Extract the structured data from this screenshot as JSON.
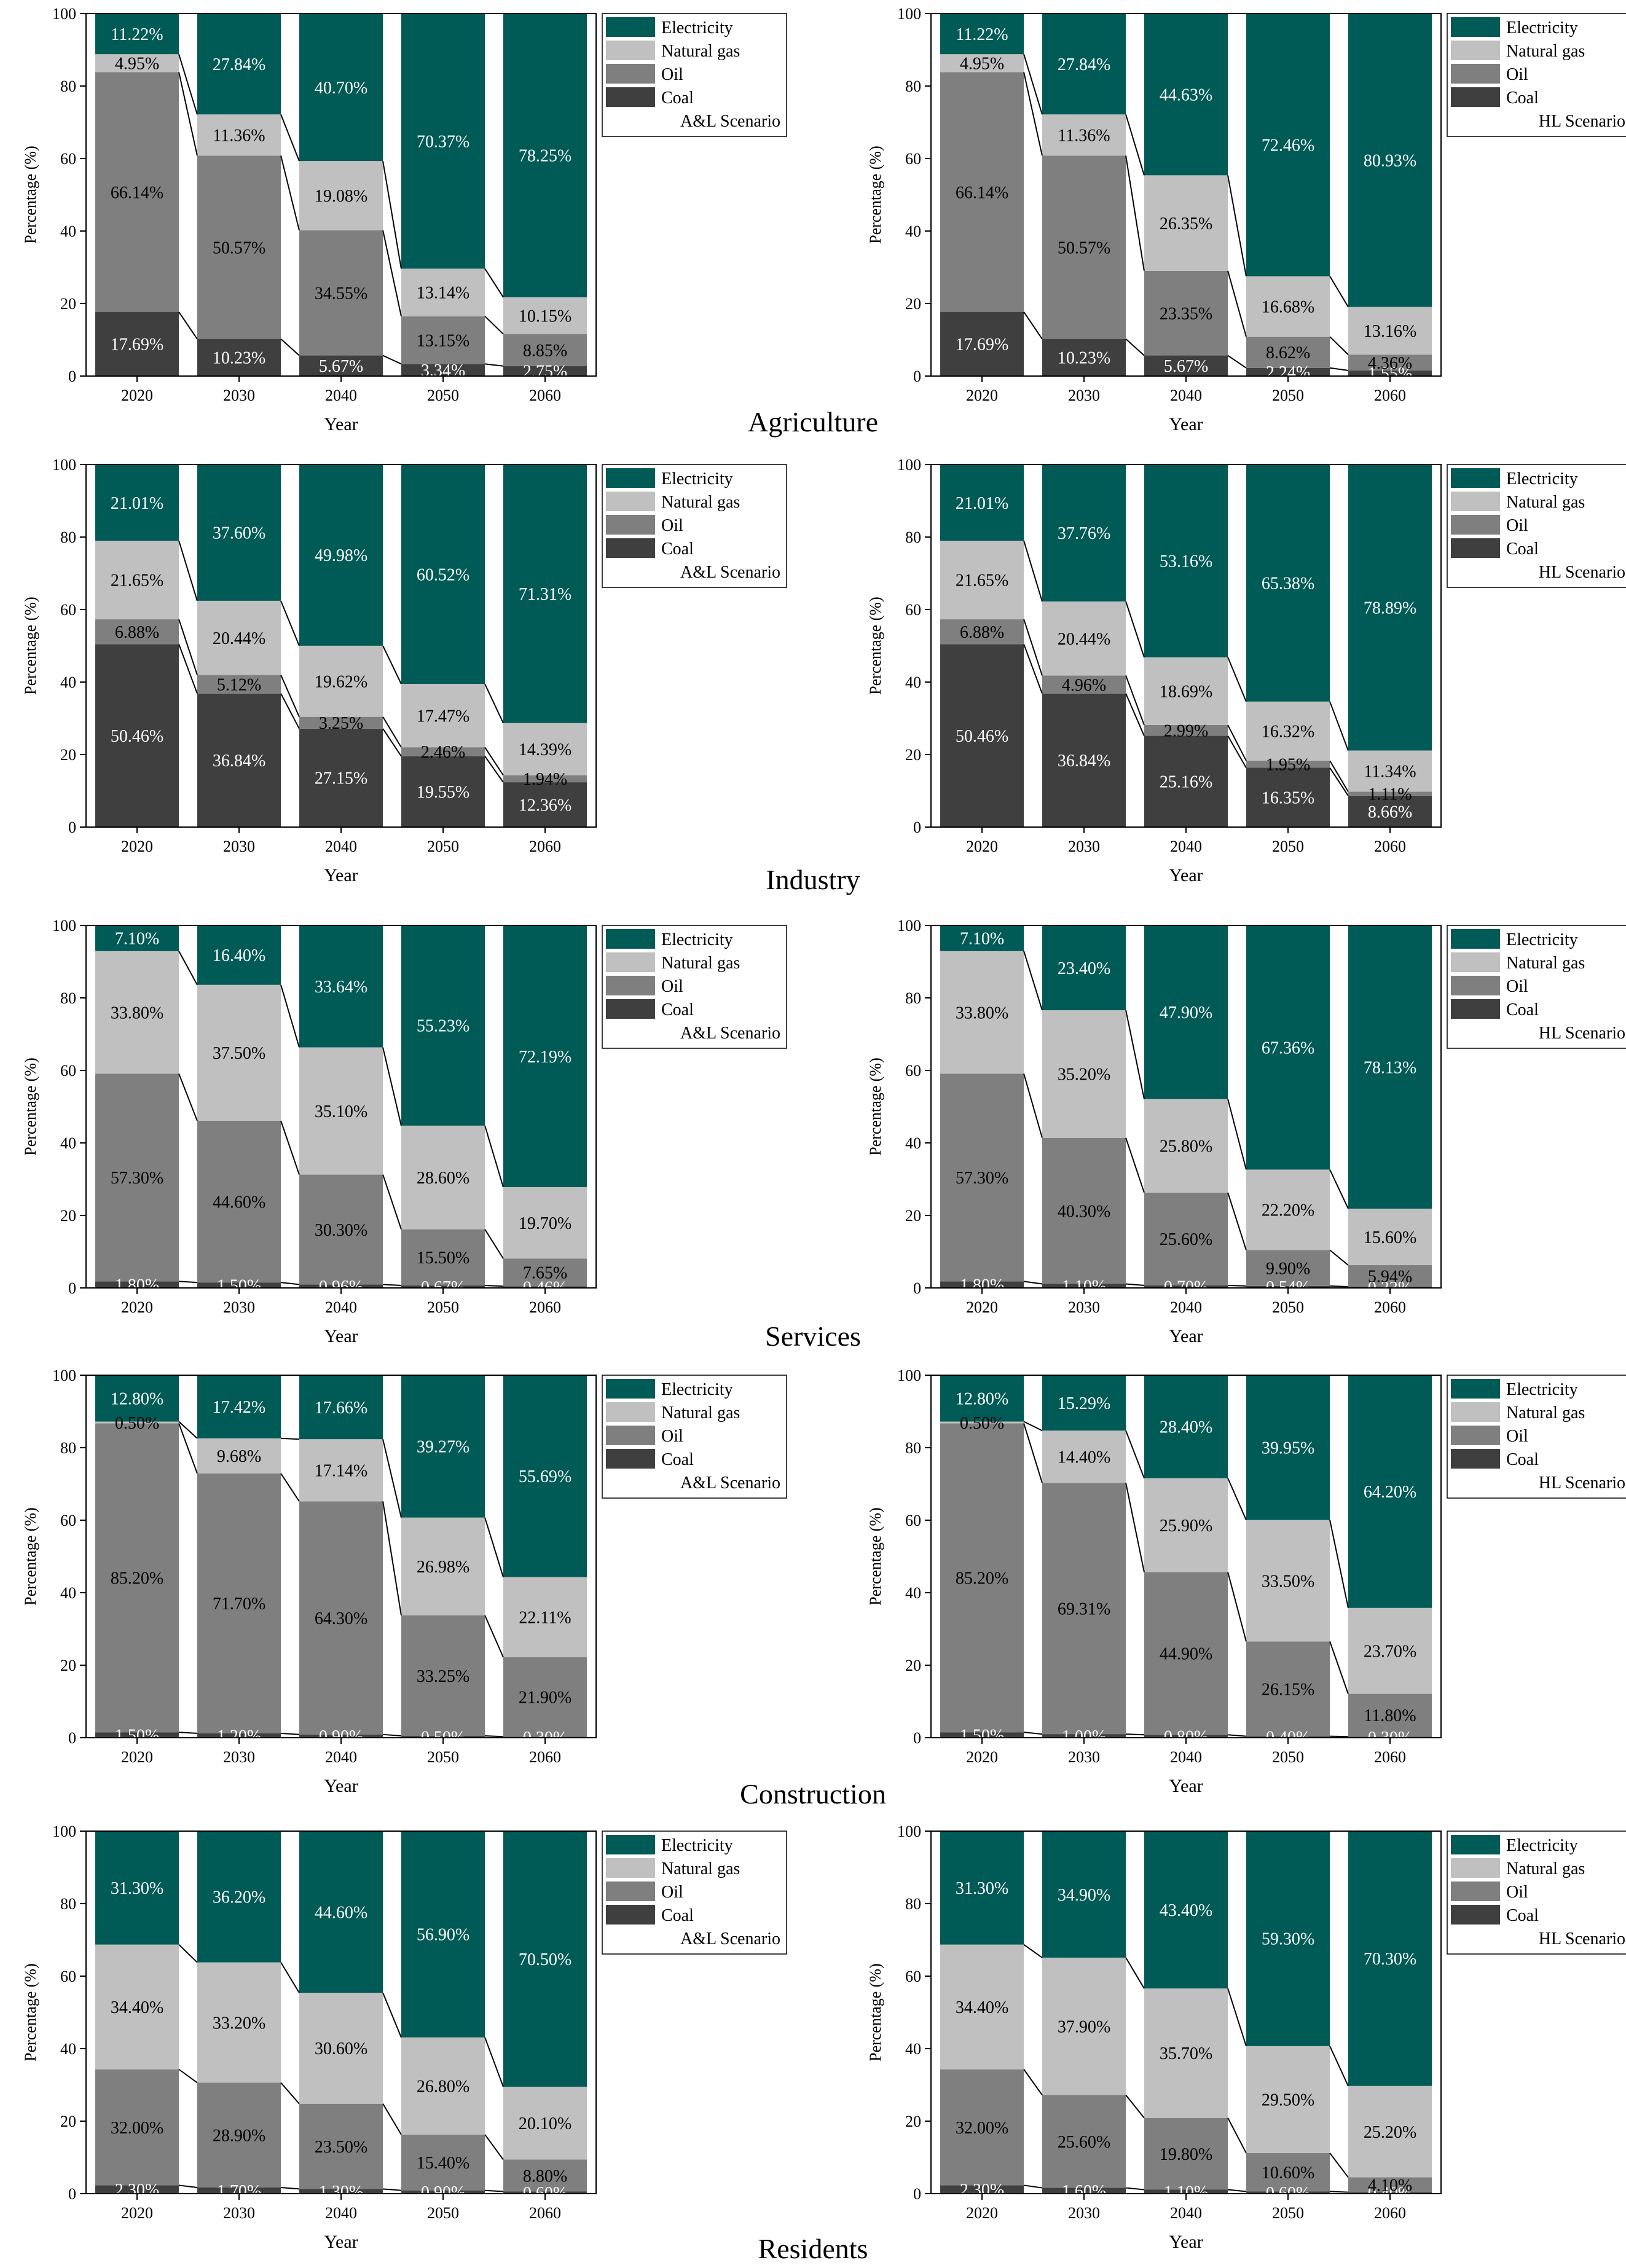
{
  "figure": {
    "axis_label_x": "Year",
    "axis_label_y": "Percentage (%)",
    "colors": {
      "Electricity": "#005a56",
      "Natural gas": "#c0c0c0",
      "Oil": "#7f7f7f",
      "Coal": "#3f3f3f"
    }
  },
  "sectors": [
    "Agriculture",
    "Industry",
    "Services",
    "Construction",
    "Residents"
  ],
  "chart_data": [
    {
      "id": "agri-al",
      "type": "bar",
      "stacked": true,
      "sector": "Agriculture",
      "scenario": "A&L Scenario",
      "categories": [
        "2020",
        "2030",
        "2040",
        "2050",
        "2060"
      ],
      "xlabel": "Year",
      "ylabel": "Percentage (%)",
      "ylim": [
        0,
        100
      ],
      "yticks": [
        "0",
        "20",
        "40",
        "60",
        "80",
        "100"
      ],
      "series": [
        {
          "name": "Coal",
          "values": [
            17.69,
            10.23,
            5.67,
            3.34,
            2.75
          ]
        },
        {
          "name": "Oil",
          "values": [
            66.14,
            50.57,
            34.55,
            13.15,
            8.85
          ]
        },
        {
          "name": "Natural gas",
          "values": [
            4.95,
            11.36,
            19.08,
            13.14,
            10.15
          ]
        },
        {
          "name": "Electricity",
          "values": [
            11.22,
            27.84,
            40.7,
            70.37,
            78.25
          ]
        }
      ]
    },
    {
      "id": "agri-hl",
      "type": "bar",
      "stacked": true,
      "sector": "Agriculture",
      "scenario": "HL Scenario",
      "categories": [
        "2020",
        "2030",
        "2040",
        "2050",
        "2060"
      ],
      "xlabel": "Year",
      "ylabel": "Percentage (%)",
      "ylim": [
        0,
        100
      ],
      "yticks": [
        "0",
        "20",
        "40",
        "60",
        "80",
        "100"
      ],
      "series": [
        {
          "name": "Coal",
          "values": [
            17.69,
            10.23,
            5.67,
            2.24,
            1.55
          ]
        },
        {
          "name": "Oil",
          "values": [
            66.14,
            50.57,
            23.35,
            8.62,
            4.36
          ]
        },
        {
          "name": "Natural gas",
          "values": [
            4.95,
            11.36,
            26.35,
            16.68,
            13.16
          ]
        },
        {
          "name": "Electricity",
          "values": [
            11.22,
            27.84,
            44.63,
            72.46,
            80.93
          ]
        }
      ]
    },
    {
      "id": "ind-al",
      "type": "bar",
      "stacked": true,
      "sector": "Industry",
      "scenario": "A&L Scenario",
      "categories": [
        "2020",
        "2030",
        "2040",
        "2050",
        "2060"
      ],
      "xlabel": "Year",
      "ylabel": "Percentage (%)",
      "ylim": [
        0,
        100
      ],
      "yticks": [
        "0",
        "20",
        "40",
        "60",
        "80",
        "100"
      ],
      "series": [
        {
          "name": "Coal",
          "values": [
            50.46,
            36.84,
            27.15,
            19.55,
            12.36
          ]
        },
        {
          "name": "Oil",
          "values": [
            6.88,
            5.12,
            3.25,
            2.46,
            1.94
          ]
        },
        {
          "name": "Natural gas",
          "values": [
            21.65,
            20.44,
            19.62,
            17.47,
            14.39
          ]
        },
        {
          "name": "Electricity",
          "values": [
            21.01,
            37.6,
            49.98,
            60.52,
            71.31
          ]
        }
      ]
    },
    {
      "id": "ind-hl",
      "type": "bar",
      "stacked": true,
      "sector": "Industry",
      "scenario": "HL Scenario",
      "categories": [
        "2020",
        "2030",
        "2040",
        "2050",
        "2060"
      ],
      "xlabel": "Year",
      "ylabel": "Percentage (%)",
      "ylim": [
        0,
        100
      ],
      "yticks": [
        "0",
        "20",
        "40",
        "60",
        "80",
        "100"
      ],
      "series": [
        {
          "name": "Coal",
          "values": [
            50.46,
            36.84,
            25.16,
            16.35,
            8.66
          ]
        },
        {
          "name": "Oil",
          "values": [
            6.88,
            4.96,
            2.99,
            1.95,
            1.11
          ]
        },
        {
          "name": "Natural gas",
          "values": [
            21.65,
            20.44,
            18.69,
            16.32,
            11.34
          ]
        },
        {
          "name": "Electricity",
          "values": [
            21.01,
            37.76,
            53.16,
            65.38,
            78.89
          ]
        }
      ]
    },
    {
      "id": "serv-al",
      "type": "bar",
      "stacked": true,
      "sector": "Services",
      "scenario": "A&L Scenario",
      "categories": [
        "2020",
        "2030",
        "2040",
        "2050",
        "2060"
      ],
      "xlabel": "Year",
      "ylabel": "Percentage (%)",
      "ylim": [
        0,
        100
      ],
      "yticks": [
        "0",
        "20",
        "40",
        "60",
        "80",
        "100"
      ],
      "series": [
        {
          "name": "Coal",
          "values": [
            1.8,
            1.5,
            0.96,
            0.67,
            0.46
          ]
        },
        {
          "name": "Oil",
          "values": [
            57.3,
            44.6,
            30.3,
            15.5,
            7.65
          ]
        },
        {
          "name": "Natural gas",
          "values": [
            33.8,
            37.5,
            35.1,
            28.6,
            19.7
          ]
        },
        {
          "name": "Electricity",
          "values": [
            7.1,
            16.4,
            33.64,
            55.23,
            72.19
          ]
        }
      ]
    },
    {
      "id": "serv-hl",
      "type": "bar",
      "stacked": true,
      "sector": "Services",
      "scenario": "HL Scenario",
      "categories": [
        "2020",
        "2030",
        "2040",
        "2050",
        "2060"
      ],
      "xlabel": "Year",
      "ylabel": "Percentage (%)",
      "ylim": [
        0,
        100
      ],
      "yticks": [
        "0",
        "20",
        "40",
        "60",
        "80",
        "100"
      ],
      "series": [
        {
          "name": "Coal",
          "values": [
            1.8,
            1.1,
            0.7,
            0.54,
            0.33
          ]
        },
        {
          "name": "Oil",
          "values": [
            57.3,
            40.3,
            25.6,
            9.9,
            5.94
          ]
        },
        {
          "name": "Natural gas",
          "values": [
            33.8,
            35.2,
            25.8,
            22.2,
            15.6
          ]
        },
        {
          "name": "Electricity",
          "values": [
            7.1,
            23.4,
            47.9,
            67.36,
            78.13
          ]
        }
      ]
    },
    {
      "id": "cons-al",
      "type": "bar",
      "stacked": true,
      "sector": "Construction",
      "scenario": "A&L Scenario",
      "categories": [
        "2020",
        "2030",
        "2040",
        "2050",
        "2060"
      ],
      "xlabel": "Year",
      "ylabel": "Percentage (%)",
      "ylim": [
        0,
        100
      ],
      "yticks": [
        "0",
        "20",
        "40",
        "60",
        "80",
        "100"
      ],
      "series": [
        {
          "name": "Coal",
          "values": [
            1.5,
            1.2,
            0.9,
            0.5,
            0.3
          ]
        },
        {
          "name": "Oil",
          "values": [
            85.2,
            71.7,
            64.3,
            33.25,
            21.9
          ]
        },
        {
          "name": "Natural gas",
          "values": [
            0.5,
            9.68,
            17.14,
            26.98,
            22.11
          ]
        },
        {
          "name": "Electricity",
          "values": [
            12.8,
            17.42,
            17.66,
            39.27,
            55.69
          ]
        }
      ]
    },
    {
      "id": "cons-hl",
      "type": "bar",
      "stacked": true,
      "sector": "Construction",
      "scenario": "HL Scenario",
      "categories": [
        "2020",
        "2030",
        "2040",
        "2050",
        "2060"
      ],
      "xlabel": "Year",
      "ylabel": "Percentage (%)",
      "ylim": [
        0,
        100
      ],
      "yticks": [
        "0",
        "20",
        "40",
        "60",
        "80",
        "100"
      ],
      "series": [
        {
          "name": "Coal",
          "values": [
            1.5,
            1.0,
            0.8,
            0.4,
            0.3
          ]
        },
        {
          "name": "Oil",
          "values": [
            85.2,
            69.31,
            44.9,
            26.15,
            11.8
          ]
        },
        {
          "name": "Natural gas",
          "values": [
            0.5,
            14.4,
            25.9,
            33.5,
            23.7
          ]
        },
        {
          "name": "Electricity",
          "values": [
            12.8,
            15.29,
            28.4,
            39.95,
            64.2
          ]
        }
      ]
    },
    {
      "id": "res-al",
      "type": "bar",
      "stacked": true,
      "sector": "Residents",
      "scenario": "A&L Scenario",
      "categories": [
        "2020",
        "2030",
        "2040",
        "2050",
        "2060"
      ],
      "xlabel": "Year",
      "ylabel": "Percentage (%)",
      "ylim": [
        0,
        100
      ],
      "yticks": [
        "0",
        "20",
        "40",
        "60",
        "80",
        "100"
      ],
      "series": [
        {
          "name": "Coal",
          "values": [
            2.3,
            1.7,
            1.3,
            0.9,
            0.6
          ]
        },
        {
          "name": "Oil",
          "values": [
            32.0,
            28.9,
            23.5,
            15.4,
            8.8
          ]
        },
        {
          "name": "Natural gas",
          "values": [
            34.4,
            33.2,
            30.6,
            26.8,
            20.1
          ]
        },
        {
          "name": "Electricity",
          "values": [
            31.3,
            36.2,
            44.6,
            56.9,
            70.5
          ]
        }
      ]
    },
    {
      "id": "res-hl",
      "type": "bar",
      "stacked": true,
      "sector": "Residents",
      "scenario": "HL Scenario",
      "categories": [
        "2020",
        "2030",
        "2040",
        "2050",
        "2060"
      ],
      "xlabel": "Year",
      "ylabel": "Percentage (%)",
      "ylim": [
        0,
        100
      ],
      "yticks": [
        "0",
        "20",
        "40",
        "60",
        "80",
        "100"
      ],
      "series": [
        {
          "name": "Coal",
          "values": [
            2.3,
            1.6,
            1.1,
            0.6,
            0.4
          ]
        },
        {
          "name": "Oil",
          "values": [
            32.0,
            25.6,
            19.8,
            10.6,
            4.1
          ]
        },
        {
          "name": "Natural gas",
          "values": [
            34.4,
            37.9,
            35.7,
            29.5,
            25.2
          ]
        },
        {
          "name": "Electricity",
          "values": [
            31.3,
            34.9,
            43.4,
            59.3,
            70.3
          ]
        }
      ]
    }
  ]
}
